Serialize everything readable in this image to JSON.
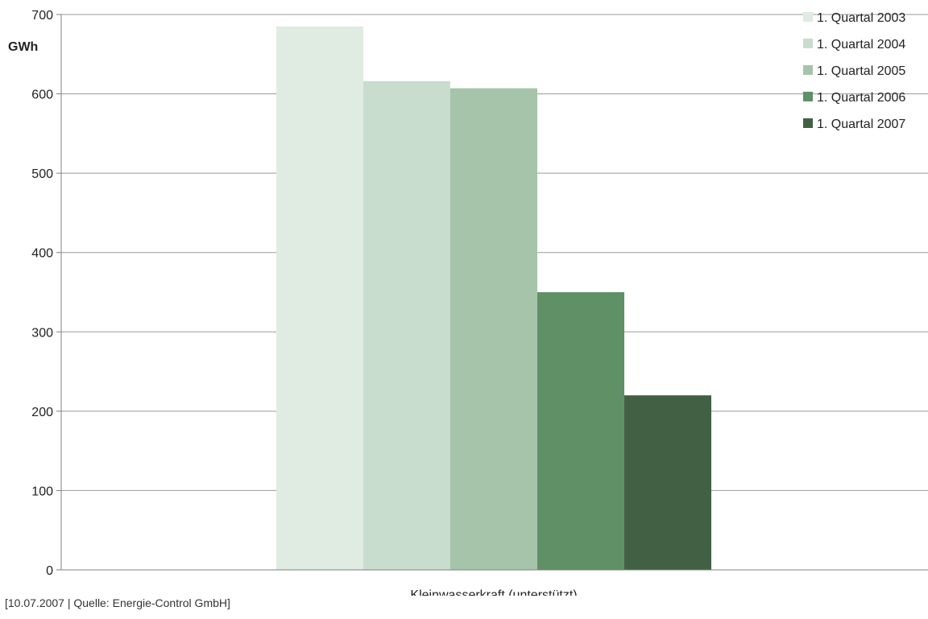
{
  "chart_data": {
    "type": "bar",
    "ylabel": "GWh",
    "categories": [
      "Kleinwasserkraft (unterstützt)"
    ],
    "ylim": [
      0,
      700
    ],
    "yticks": [
      0,
      100,
      200,
      300,
      400,
      500,
      600,
      700
    ],
    "grid": true,
    "legend_position": "top-right",
    "series": [
      {
        "name": "1. Quartal 2003",
        "values": [
          685
        ],
        "color": "#e0ebe2"
      },
      {
        "name": "1. Quartal 2004",
        "values": [
          616
        ],
        "color": "#c8ddce"
      },
      {
        "name": "1. Quartal 2005",
        "values": [
          607
        ],
        "color": "#a6c4a9"
      },
      {
        "name": "1. Quartal 2006",
        "values": [
          350
        ],
        "color": "#5f9066"
      },
      {
        "name": "1. Quartal 2007",
        "values": [
          220
        ],
        "color": "#426144"
      }
    ]
  },
  "footer": {
    "source": "[10.07.2007 | Quelle: Energie-Control GmbH]"
  }
}
